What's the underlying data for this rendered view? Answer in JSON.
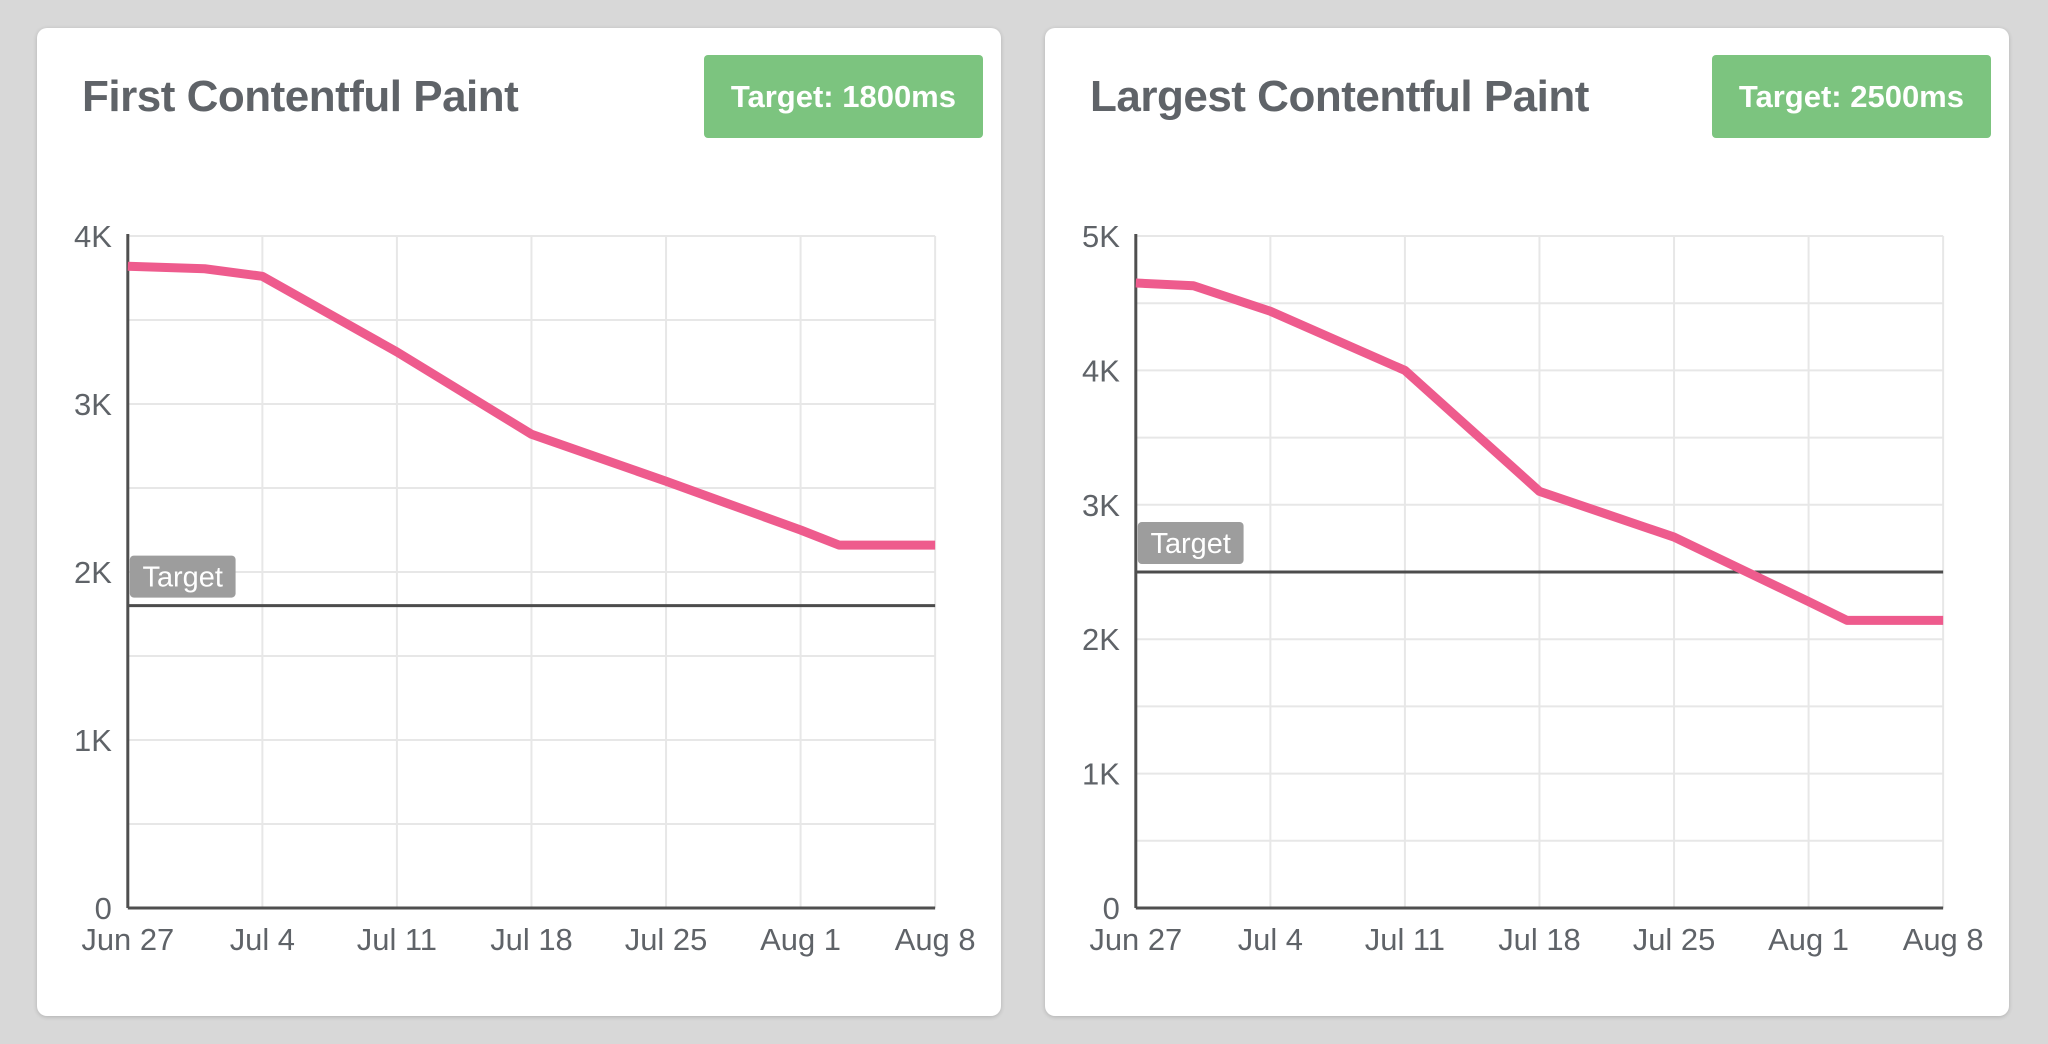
{
  "theme": {
    "page_bg": "#d8d8d8",
    "card_bg": "#ffffff",
    "title_text": "#5f6368",
    "badge_green": "#7cc47f",
    "badge_text": "#ffffff",
    "accent_pink": "#ee5b8d",
    "grid": "#e7e7e7",
    "axis": "#4f4f4f",
    "target_line": "#4c4c4c",
    "target_label_bg": "#9d9d9d",
    "target_label_text": "#ffffff",
    "tick_text": "#5f6368"
  },
  "chart_data": [
    {
      "type": "line",
      "title": "First Contentful Paint",
      "badge_label": "Target: 1800ms",
      "unit": "ms",
      "xlabel": "",
      "ylabel": "",
      "x_tick_labels": [
        "Jun 27",
        "Jul 4",
        "Jul 11",
        "Jul 18",
        "Jul 25",
        "Aug 1",
        "Aug 8"
      ],
      "x_tick_days": [
        0,
        7,
        14,
        21,
        28,
        35,
        42
      ],
      "x_range_days": [
        0,
        42
      ],
      "y_tick_labels": [
        "0",
        "1K",
        "2K",
        "3K",
        "4K"
      ],
      "y_tick_values": [
        0,
        1000,
        2000,
        3000,
        4000
      ],
      "ylim": [
        0,
        4000
      ],
      "y_minor_step": 500,
      "grid": true,
      "legend_position": "none",
      "target": {
        "value": 1800,
        "label": "Target"
      },
      "series": [
        {
          "name": "First Contentful Paint (ms)",
          "color": "#ee5b8d",
          "x_days": [
            0,
            4,
            7,
            14,
            21,
            28,
            35,
            37,
            42
          ],
          "values": [
            3820,
            3805,
            3760,
            3310,
            2820,
            2540,
            2250,
            2160,
            2160
          ]
        }
      ]
    },
    {
      "type": "line",
      "title": "Largest Contentful Paint",
      "badge_label": "Target: 2500ms",
      "unit": "ms",
      "xlabel": "",
      "ylabel": "",
      "x_tick_labels": [
        "Jun 27",
        "Jul 4",
        "Jul 11",
        "Jul 18",
        "Jul 25",
        "Aug 1",
        "Aug 8"
      ],
      "x_tick_days": [
        0,
        7,
        14,
        21,
        28,
        35,
        42
      ],
      "x_range_days": [
        0,
        42
      ],
      "y_tick_labels": [
        "0",
        "1K",
        "2K",
        "3K",
        "4K",
        "5K"
      ],
      "y_tick_values": [
        0,
        1000,
        2000,
        3000,
        4000,
        5000
      ],
      "ylim": [
        0,
        5000
      ],
      "y_minor_step": 500,
      "grid": true,
      "legend_position": "none",
      "target": {
        "value": 2500,
        "label": "Target"
      },
      "series": [
        {
          "name": "Largest Contentful Paint (ms)",
          "color": "#ee5b8d",
          "x_days": [
            0,
            3,
            7,
            14,
            21,
            28,
            35,
            37,
            42
          ],
          "values": [
            4650,
            4630,
            4440,
            4000,
            3100,
            2760,
            2280,
            2140,
            2140
          ]
        }
      ]
    }
  ]
}
